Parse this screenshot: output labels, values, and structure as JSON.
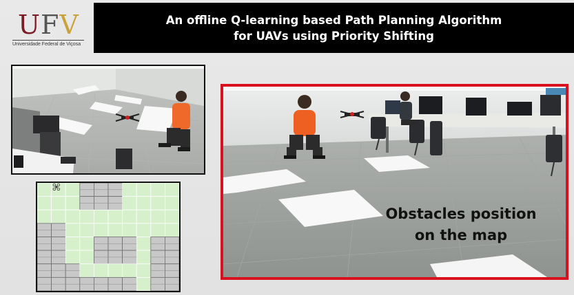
{
  "logo": {
    "u": "U",
    "f": "F",
    "v": "V",
    "subtitle": "Universidade Federal de Viçosa",
    "colors": {
      "u": "#7a1c24",
      "f": "#555555",
      "v": "#c9a23a"
    }
  },
  "header": {
    "title_line1": "An offline Q-learning based Path Planning Algorithm",
    "title_line2": "for UAVs using Priority Shifting"
  },
  "grid_map": {
    "columns": 10,
    "rows": 8,
    "free_cell_color": "#d6f0cc",
    "obstacle_color": "#c8c8c8",
    "obstacle_cells": [
      [
        3,
        0
      ],
      [
        4,
        0
      ],
      [
        5,
        0
      ],
      [
        3,
        1
      ],
      [
        4,
        1
      ],
      [
        5,
        1
      ],
      [
        0,
        3
      ],
      [
        1,
        3
      ],
      [
        0,
        4
      ],
      [
        1,
        4
      ],
      [
        0,
        5
      ],
      [
        1,
        5
      ],
      [
        0,
        6
      ],
      [
        1,
        6
      ],
      [
        2,
        6
      ],
      [
        0,
        7
      ],
      [
        1,
        7
      ],
      [
        2,
        7
      ],
      [
        4,
        4
      ],
      [
        5,
        4
      ],
      [
        6,
        4
      ],
      [
        4,
        5
      ],
      [
        5,
        5
      ],
      [
        6,
        5
      ],
      [
        9,
        4
      ],
      [
        8,
        4
      ],
      [
        9,
        5
      ],
      [
        8,
        5
      ],
      [
        9,
        6
      ],
      [
        8,
        6
      ],
      [
        9,
        7
      ],
      [
        8,
        7
      ],
      [
        3,
        7
      ],
      [
        4,
        7
      ],
      [
        5,
        7
      ],
      [
        6,
        7
      ]
    ],
    "uav_icon": "drone-icon"
  },
  "main_photo": {
    "caption_line1": "Obstacles position",
    "caption_line2": "on the map",
    "border_color": "#d9111e"
  }
}
